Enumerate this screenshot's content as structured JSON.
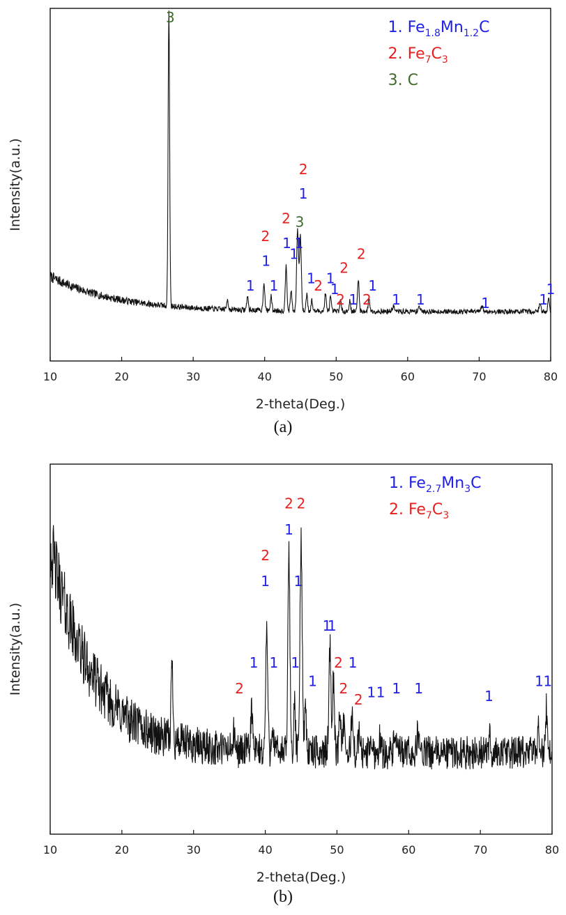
{
  "chart_data": [
    {
      "type": "line",
      "panel": "(a)",
      "xlabel": "2-theta(Deg.)",
      "ylabel": "Intensity(a.u.)",
      "xlim": [
        10,
        80
      ],
      "ylim": [
        0,
        100
      ],
      "xticks": [
        "10",
        "20",
        "30",
        "40",
        "50",
        "60",
        "70",
        "80"
      ],
      "grid": false,
      "legend_position": "top-right",
      "legend": [
        {
          "num": "1.",
          "parts": [
            [
              "Fe",
              ""
            ],
            [
              "1.8",
              "sub"
            ],
            [
              "Mn",
              ""
            ],
            [
              "1.2",
              "sub"
            ],
            [
              "C",
              ""
            ]
          ],
          "color": "#1f1fe6"
        },
        {
          "num": "2.",
          "parts": [
            [
              "Fe",
              ""
            ],
            [
              "7",
              "sub"
            ],
            [
              "C",
              ""
            ],
            [
              "3",
              "sub"
            ]
          ],
          "color": "#e61f1f"
        },
        {
          "num": "3.",
          "parts": [
            [
              "C",
              ""
            ]
          ],
          "color": "#3f6b2a"
        }
      ],
      "baseline": {
        "start": 24,
        "end": 14,
        "decay": 9,
        "noise": 0.7
      },
      "peaks": [
        {
          "x": 26.6,
          "h": 84,
          "w": 0.15
        },
        {
          "x": 34.8,
          "h": 3,
          "w": 0.15
        },
        {
          "x": 37.6,
          "h": 4,
          "w": 0.15
        },
        {
          "x": 39.9,
          "h": 8,
          "w": 0.16
        },
        {
          "x": 40.9,
          "h": 4,
          "w": 0.15
        },
        {
          "x": 43.0,
          "h": 13,
          "w": 0.16
        },
        {
          "x": 43.7,
          "h": 6,
          "w": 0.15
        },
        {
          "x": 44.6,
          "h": 23,
          "w": 0.18
        },
        {
          "x": 45.0,
          "h": 21,
          "w": 0.18
        },
        {
          "x": 45.9,
          "h": 5,
          "w": 0.15
        },
        {
          "x": 46.6,
          "h": 3,
          "w": 0.15
        },
        {
          "x": 48.5,
          "h": 5,
          "w": 0.15
        },
        {
          "x": 49.2,
          "h": 4,
          "w": 0.15
        },
        {
          "x": 50.6,
          "h": 3,
          "w": 0.15
        },
        {
          "x": 51.9,
          "h": 3,
          "w": 0.15
        },
        {
          "x": 53.1,
          "h": 9,
          "w": 0.16
        },
        {
          "x": 54.6,
          "h": 4,
          "w": 0.15
        },
        {
          "x": 58.0,
          "h": 1.5,
          "w": 0.2
        },
        {
          "x": 61.6,
          "h": 1.5,
          "w": 0.2
        },
        {
          "x": 70.4,
          "h": 1.5,
          "w": 0.2
        },
        {
          "x": 78.5,
          "h": 2,
          "w": 0.2
        },
        {
          "x": 79.7,
          "h": 4,
          "w": 0.15
        }
      ],
      "labels": [
        {
          "text": "3",
          "x": 26.8,
          "y": 96,
          "color": "#3f6b2a"
        },
        {
          "text": "1",
          "x": 38.0,
          "y": 20,
          "color": "#1f1fe6"
        },
        {
          "text": "1",
          "x": 40.2,
          "y": 27,
          "color": "#1f1fe6"
        },
        {
          "text": "2",
          "x": 40.1,
          "y": 34,
          "color": "#e61f1f"
        },
        {
          "text": "1",
          "x": 41.3,
          "y": 20,
          "color": "#1f1fe6"
        },
        {
          "text": "1",
          "x": 43.1,
          "y": 32,
          "color": "#1f1fe6"
        },
        {
          "text": "2",
          "x": 43.0,
          "y": 39,
          "color": "#e61f1f"
        },
        {
          "text": "1",
          "x": 44.1,
          "y": 29,
          "color": "#1f1fe6"
        },
        {
          "text": "1",
          "x": 44.8,
          "y": 32,
          "color": "#1f1fe6"
        },
        {
          "text": "3",
          "x": 44.9,
          "y": 38,
          "color": "#3f6b2a"
        },
        {
          "text": "1",
          "x": 45.4,
          "y": 46,
          "color": "#1f1fe6"
        },
        {
          "text": "2",
          "x": 45.4,
          "y": 53,
          "color": "#e61f1f"
        },
        {
          "text": "1",
          "x": 46.5,
          "y": 22,
          "color": "#1f1fe6"
        },
        {
          "text": "2",
          "x": 47.5,
          "y": 20,
          "color": "#e61f1f"
        },
        {
          "text": "1",
          "x": 49.2,
          "y": 22,
          "color": "#1f1fe6"
        },
        {
          "text": "1",
          "x": 49.8,
          "y": 19,
          "color": "#1f1fe6"
        },
        {
          "text": "2",
          "x": 50.6,
          "y": 16,
          "color": "#e61f1f"
        },
        {
          "text": "2",
          "x": 51.1,
          "y": 25,
          "color": "#e61f1f"
        },
        {
          "text": "1",
          "x": 52.4,
          "y": 16,
          "color": "#1f1fe6"
        },
        {
          "text": "2",
          "x": 53.5,
          "y": 29,
          "color": "#e61f1f"
        },
        {
          "text": "2",
          "x": 54.3,
          "y": 16,
          "color": "#e61f1f"
        },
        {
          "text": "1",
          "x": 55.1,
          "y": 20,
          "color": "#1f1fe6"
        },
        {
          "text": "1",
          "x": 58.4,
          "y": 16,
          "color": "#1f1fe6"
        },
        {
          "text": "1",
          "x": 61.8,
          "y": 16,
          "color": "#1f1fe6"
        },
        {
          "text": "1",
          "x": 70.9,
          "y": 15,
          "color": "#1f1fe6"
        },
        {
          "text": "1",
          "x": 79.0,
          "y": 16,
          "color": "#1f1fe6"
        },
        {
          "text": "1",
          "x": 80.0,
          "y": 19,
          "color": "#1f1fe6"
        }
      ]
    },
    {
      "type": "line",
      "panel": "(b)",
      "xlabel": "2-theta(Deg.)",
      "ylabel": "Intensity(a.u.)",
      "xlim": [
        10,
        80
      ],
      "ylim": [
        0,
        100
      ],
      "xticks": [
        "10",
        "20",
        "30",
        "40",
        "50",
        "60",
        "70",
        "80"
      ],
      "grid": false,
      "legend_position": "top-right",
      "legend": [
        {
          "num": "1.",
          "parts": [
            [
              "Fe",
              ""
            ],
            [
              "2.7",
              "sub"
            ],
            [
              "Mn",
              ""
            ],
            [
              "3",
              "sub"
            ],
            [
              "C",
              ""
            ]
          ],
          "color": "#1f1fe6"
        },
        {
          "num": "2.",
          "parts": [
            [
              "Fe",
              ""
            ],
            [
              "7",
              "sub"
            ],
            [
              "C",
              ""
            ],
            [
              "3",
              "sub"
            ]
          ],
          "color": "#e61f1f"
        }
      ],
      "baseline": {
        "start": 78,
        "end": 22,
        "decay": 6,
        "noise": 4.5
      },
      "peaks": [
        {
          "x": 27.0,
          "h": 20,
          "w": 0.2
        },
        {
          "x": 35.6,
          "h": 4,
          "w": 0.2
        },
        {
          "x": 38.1,
          "h": 12,
          "w": 0.18
        },
        {
          "x": 40.2,
          "h": 33,
          "w": 0.2
        },
        {
          "x": 41.0,
          "h": 8,
          "w": 0.18
        },
        {
          "x": 43.3,
          "h": 53,
          "w": 0.2
        },
        {
          "x": 44.1,
          "h": 12,
          "w": 0.18
        },
        {
          "x": 45.0,
          "h": 57,
          "w": 0.22
        },
        {
          "x": 45.6,
          "h": 12,
          "w": 0.2
        },
        {
          "x": 49.0,
          "h": 29,
          "w": 0.2
        },
        {
          "x": 49.5,
          "h": 19,
          "w": 0.2
        },
        {
          "x": 50.4,
          "h": 12,
          "w": 0.18
        },
        {
          "x": 50.9,
          "h": 8,
          "w": 0.18
        },
        {
          "x": 52.1,
          "h": 11,
          "w": 0.18
        },
        {
          "x": 53.1,
          "h": 5,
          "w": 0.18
        },
        {
          "x": 54.7,
          "h": 4,
          "w": 0.18
        },
        {
          "x": 56.0,
          "h": 4,
          "w": 0.18
        },
        {
          "x": 58.1,
          "h": 6,
          "w": 0.18
        },
        {
          "x": 61.3,
          "h": 6,
          "w": 0.18
        },
        {
          "x": 71.3,
          "h": 4,
          "w": 0.18
        },
        {
          "x": 78.1,
          "h": 8,
          "w": 0.18
        },
        {
          "x": 79.2,
          "h": 12,
          "w": 0.18
        }
      ],
      "labels": [
        {
          "text": "2",
          "x": 36.4,
          "y": 38,
          "color": "#e61f1f"
        },
        {
          "text": "1",
          "x": 38.4,
          "y": 45,
          "color": "#1f1fe6"
        },
        {
          "text": "1",
          "x": 40.0,
          "y": 67,
          "color": "#1f1fe6"
        },
        {
          "text": "2",
          "x": 40.0,
          "y": 74,
          "color": "#e61f1f"
        },
        {
          "text": "1",
          "x": 41.2,
          "y": 45,
          "color": "#1f1fe6"
        },
        {
          "text": "1",
          "x": 43.3,
          "y": 81,
          "color": "#1f1fe6"
        },
        {
          "text": "2",
          "x": 43.3,
          "y": 88,
          "color": "#e61f1f"
        },
        {
          "text": "1",
          "x": 44.2,
          "y": 45,
          "color": "#1f1fe6"
        },
        {
          "text": "1",
          "x": 44.6,
          "y": 67,
          "color": "#1f1fe6"
        },
        {
          "text": "2",
          "x": 45.0,
          "y": 88,
          "color": "#e61f1f"
        },
        {
          "text": "1",
          "x": 46.6,
          "y": 40,
          "color": "#1f1fe6"
        },
        {
          "text": "1",
          "x": 48.6,
          "y": 55,
          "color": "#1f1fe6"
        },
        {
          "text": "1",
          "x": 49.3,
          "y": 55,
          "color": "#1f1fe6"
        },
        {
          "text": "2",
          "x": 50.2,
          "y": 45,
          "color": "#e61f1f"
        },
        {
          "text": "2",
          "x": 50.9,
          "y": 38,
          "color": "#e61f1f"
        },
        {
          "text": "1",
          "x": 52.2,
          "y": 45,
          "color": "#1f1fe6"
        },
        {
          "text": "2",
          "x": 53.0,
          "y": 35,
          "color": "#e61f1f"
        },
        {
          "text": "1",
          "x": 54.8,
          "y": 37,
          "color": "#1f1fe6"
        },
        {
          "text": "1",
          "x": 56.1,
          "y": 37,
          "color": "#1f1fe6"
        },
        {
          "text": "1",
          "x": 58.3,
          "y": 38,
          "color": "#1f1fe6"
        },
        {
          "text": "1",
          "x": 61.4,
          "y": 38,
          "color": "#1f1fe6"
        },
        {
          "text": "1",
          "x": 71.2,
          "y": 36,
          "color": "#1f1fe6"
        },
        {
          "text": "1",
          "x": 78.2,
          "y": 40,
          "color": "#1f1fe6"
        },
        {
          "text": "1",
          "x": 79.4,
          "y": 40,
          "color": "#1f1fe6"
        }
      ]
    }
  ],
  "captions": {
    "a": "(a)",
    "b": "(b)"
  }
}
